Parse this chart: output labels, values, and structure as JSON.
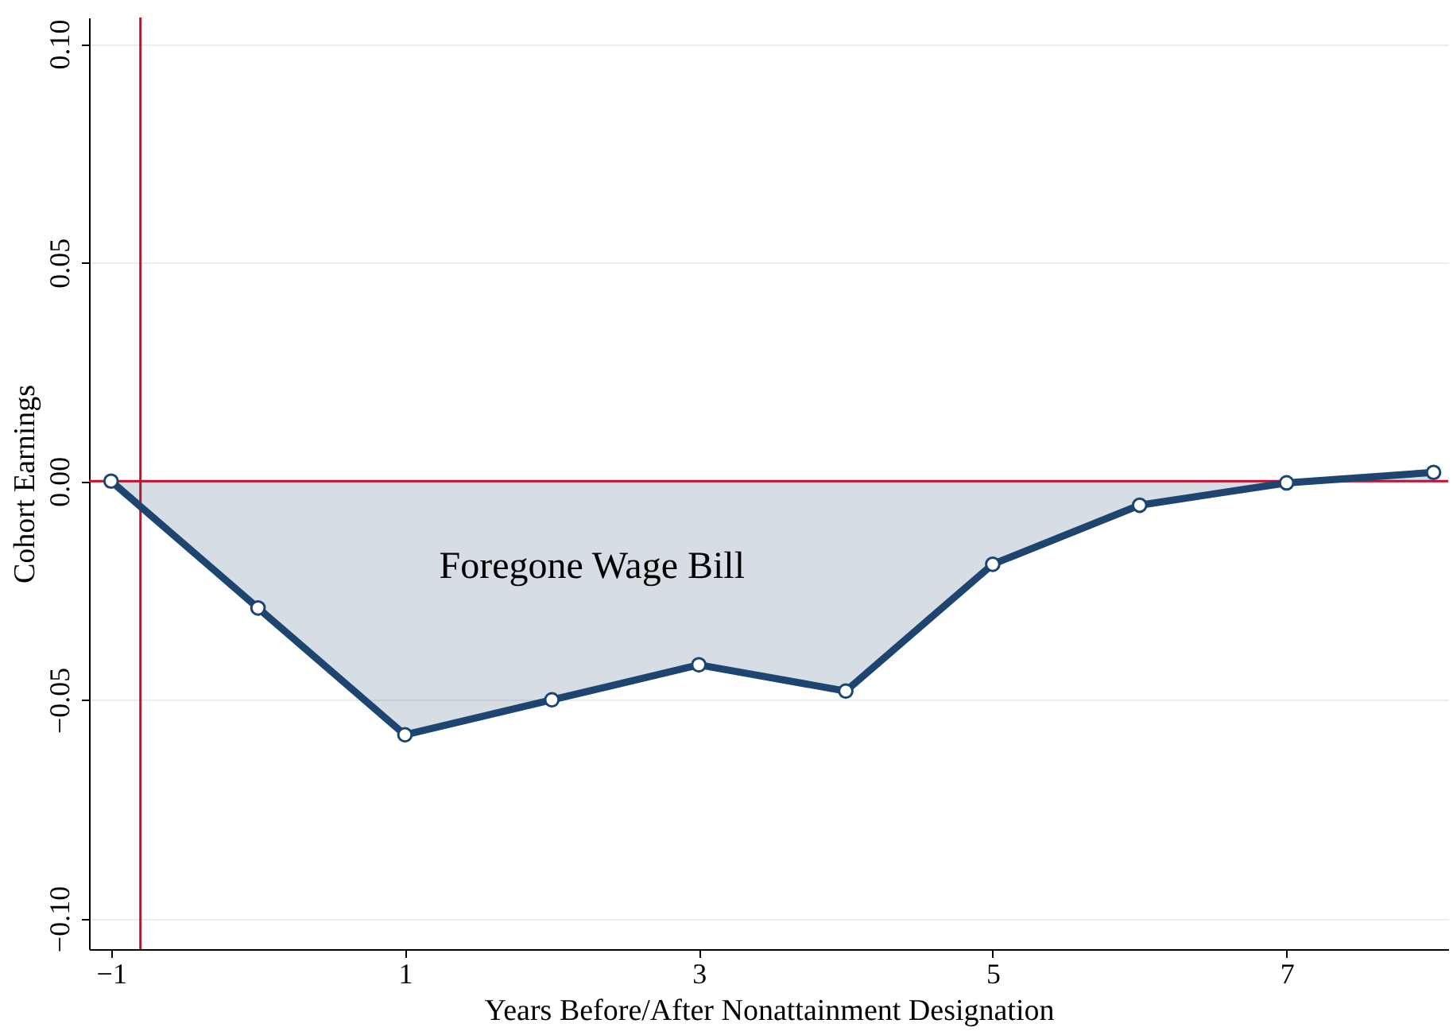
{
  "chart_data": {
    "type": "area",
    "xlabel": "Years Before/After Nonattainment Designation",
    "ylabel": "Cohort Earnings",
    "x": [
      -1,
      0,
      1,
      2,
      3,
      4,
      5,
      6,
      7,
      8
    ],
    "series": [
      {
        "color": "#1e4570",
        "values": [
          0,
          -0.029,
          -0.058,
          -0.05,
          -0.042,
          -0.048,
          -0.019,
          -0.0055,
          -0.0004,
          0.002
        ]
      }
    ],
    "marker": "circle",
    "line_style": "solid",
    "grid": "y",
    "xlim": [
      -1.15,
      8.1
    ],
    "xticks": [
      {
        "value": -1,
        "label": "−1"
      },
      1,
      3,
      5,
      7
    ],
    "ylim": [
      -0.107,
      0.106
    ],
    "yticks": [
      {
        "value": -0.1,
        "label": "−0.10"
      },
      {
        "value": -0.05,
        "label": "−0.05"
      },
      {
        "value": 0,
        "label": "0.00"
      },
      {
        "value": 0.05,
        "label": "0.05"
      },
      {
        "value": 0.1,
        "label": "0.10"
      }
    ],
    "ref_lines": [
      {
        "axis": "x",
        "value": -0.8,
        "color": "#c8102e"
      },
      {
        "axis": "y",
        "value": 0,
        "color": "#c8102e"
      }
    ],
    "annotations": [
      "Foregone Wage Bill"
    ]
  }
}
